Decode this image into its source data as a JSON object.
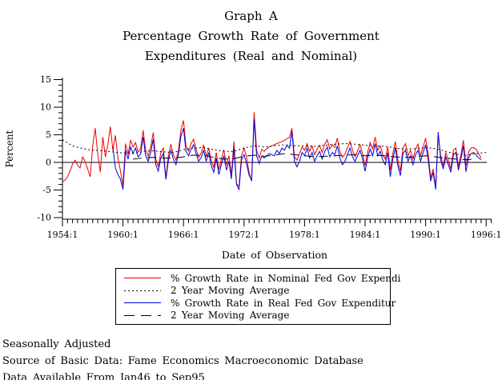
{
  "title": {
    "line1": "Graph A",
    "line2": "Percentage Growth Rate of Government",
    "line3": "Expenditures (Real and Nominal)"
  },
  "chart_data": {
    "type": "line",
    "title": "Graph A - Percentage Growth Rate of Government Expenditures (Real and Nominal)",
    "xlabel": "Date of Observation",
    "ylabel": "Percent",
    "ylim": [
      -10,
      15
    ],
    "xlim": [
      1954,
      1996.5
    ],
    "grid": false,
    "legend_position": "below",
    "y_ticks": [
      15,
      10,
      5,
      0,
      -5,
      -10
    ],
    "x_tick_years": [
      1954,
      1960,
      1966,
      1972,
      1978,
      1984,
      1990,
      1996
    ],
    "x_tick_labels": [
      "1954:1",
      "1960:1",
      "1966:1",
      "1972:1",
      "1978:1",
      "1984:1",
      "1990:1",
      "1996:1"
    ],
    "series": [
      {
        "name": "% Growth Rate in Nominal Fed Gov Expendi",
        "color": "#ee0000",
        "dash": "solid",
        "start": 1954.0,
        "step": 0.25,
        "values": [
          -3.5,
          -3.2,
          -2.6,
          -1.6,
          -0.3,
          0.4,
          -0.5,
          -1.0,
          1.0,
          0.2,
          -1.2,
          -2.6,
          3.0,
          6.2,
          1.5,
          -1.8,
          4.6,
          1.0,
          3.2,
          6.5,
          2.2,
          4.9,
          0.8,
          -1.5,
          -4.2,
          3.4,
          1.5,
          4.0,
          2.8,
          3.6,
          1.9,
          2.4,
          5.8,
          2.2,
          1.1,
          2.9,
          5.4,
          0.6,
          -0.8,
          1.7,
          2.6,
          -2.9,
          1.2,
          3.3,
          1.4,
          0.4,
          2.2,
          5.9,
          7.6,
          3.0,
          2.0,
          3.4,
          4.2,
          2.4,
          0.9,
          1.7,
          3.2,
          1.1,
          2.6,
          0.3,
          -0.9,
          1.8,
          -1.3,
          0.6,
          2.3,
          -0.5,
          1.2,
          -2.2,
          3.8,
          -3.9,
          -4.3,
          1.2,
          2.6,
          1.0,
          -1.8,
          -3.4,
          9.1,
          2.2,
          0.8,
          2.4,
          2.0,
          2.5,
          2.8,
          3.0,
          3.2,
          3.4,
          3.6,
          3.8,
          4.0,
          4.3,
          4.5,
          6.2,
          1.0,
          0.4,
          1.6,
          2.8,
          2.2,
          3.4,
          2.0,
          3.0,
          1.4,
          2.4,
          3.1,
          1.8,
          3.3,
          4.1,
          2.4,
          3.2,
          2.7,
          4.4,
          2.0,
          0.9,
          1.5,
          2.6,
          3.8,
          2.2,
          1.0,
          2.1,
          3.2,
          1.6,
          -0.6,
          1.8,
          3.6,
          2.4,
          4.6,
          2.2,
          3.0,
          1.4,
          0.6,
          2.8,
          -1.4,
          1.6,
          3.8,
          0.4,
          -1.6,
          2.6,
          3.4,
          1.2,
          2.2,
          0.6,
          2.4,
          3.3,
          1.2,
          2.8,
          4.4,
          1.6,
          -2.8,
          -1.2,
          -4.4,
          4.9,
          1.2,
          -0.6,
          1.8,
          0.4,
          -1.2,
          2.2,
          2.6,
          -0.8,
          1.4,
          4.0,
          -0.6,
          1.8,
          2.6,
          2.7,
          2.4,
          1.6,
          0.8
        ]
      },
      {
        "name": "2 Year Moving Average",
        "color": "#000000",
        "dash": "fine",
        "start": 1954.0,
        "step": 1,
        "values": [
          4.1,
          3.0,
          2.5,
          2.2,
          2.1,
          1.9,
          1.7,
          1.6,
          2.0,
          2.1,
          1.9,
          1.8,
          2.3,
          2.6,
          2.7,
          2.3,
          2.0,
          2.0,
          2.6,
          3.0,
          2.8,
          3.0,
          3.2,
          3.0,
          3.0,
          2.9,
          3.1,
          3.3,
          3.4,
          3.3,
          3.1,
          3.0,
          2.9,
          2.6,
          2.4,
          2.5,
          2.7,
          2.5,
          2.0,
          1.5,
          1.3,
          1.6,
          1.8
        ]
      },
      {
        "name": "% Growth Rate in Real Fed Gov Expenditur",
        "color": "#0000dd",
        "dash": "solid",
        "start": 1959.0,
        "step": 0.25,
        "values": [
          2.8,
          -1.0,
          -2.2,
          -3.0,
          -4.9,
          2.2,
          0.6,
          2.8,
          1.6,
          2.6,
          1.0,
          1.5,
          4.6,
          1.2,
          0.2,
          1.8,
          4.2,
          -0.4,
          -1.6,
          0.8,
          1.6,
          -3.1,
          0.4,
          2.2,
          0.6,
          -0.4,
          1.4,
          4.8,
          6.2,
          2.0,
          1.2,
          2.4,
          3.2,
          1.6,
          0.2,
          0.9,
          2.2,
          0.2,
          1.8,
          -0.6,
          -1.8,
          0.8,
          -2.2,
          -0.4,
          1.2,
          -1.4,
          0.2,
          -3.0,
          2.6,
          -4.0,
          -4.9,
          0.4,
          1.4,
          -0.2,
          -2.3,
          -3.3,
          7.8,
          1.2,
          -0.2,
          1.2,
          0.8,
          1.2,
          1.6,
          1.4,
          1.2,
          2.2,
          1.6,
          2.6,
          2.2,
          3.1,
          2.6,
          5.6,
          0.2,
          -0.8,
          0.2,
          1.8,
          1.2,
          2.6,
          0.8,
          1.8,
          0.2,
          1.2,
          2.0,
          0.6,
          2.0,
          2.8,
          1.0,
          1.8,
          1.4,
          3.0,
          0.8,
          -0.4,
          0.2,
          1.4,
          2.6,
          1.0,
          0.2,
          1.2,
          2.2,
          0.6,
          -1.6,
          0.8,
          2.4,
          1.2,
          3.4,
          1.2,
          2.0,
          0.4,
          -0.4,
          1.8,
          -2.6,
          0.6,
          2.6,
          -0.6,
          -2.4,
          1.6,
          2.2,
          0.2,
          1.2,
          -0.4,
          1.4,
          2.2,
          0.2,
          1.8,
          3.2,
          0.6,
          -3.4,
          -1.8,
          -4.9,
          5.5,
          0.4,
          -1.2,
          1.0,
          -0.4,
          -1.8,
          1.4,
          1.8,
          -1.4,
          0.6,
          3.0,
          -1.7,
          0.8,
          1.6,
          1.8,
          1.4,
          0.8,
          0.5
        ]
      },
      {
        "name": "2 Year Moving Average",
        "color": "#000000",
        "dash": "long",
        "start": 1961.0,
        "step": 1,
        "values": [
          0.6,
          0.8,
          0.9,
          0.8,
          0.8,
          1.0,
          1.3,
          1.3,
          0.9,
          0.6,
          0.7,
          1.1,
          1.3,
          1.1,
          1.3,
          1.6,
          1.4,
          1.2,
          1.0,
          1.1,
          1.2,
          1.3,
          1.4,
          1.2,
          1.3,
          1.2,
          1.0,
          0.9,
          1.0,
          1.2,
          1.0,
          0.8,
          0.6,
          0.5,
          0.6
        ]
      }
    ]
  },
  "footnotes": {
    "line1": "Seasonally Adjusted",
    "line2": "Source of Basic Data: Fame Economics Macroeconomic Database",
    "line3": "Data Available From Jan46 to Sep95"
  }
}
